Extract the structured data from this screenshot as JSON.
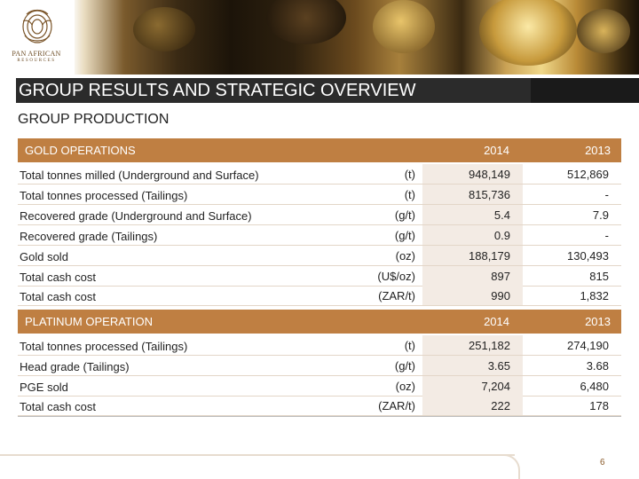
{
  "logo": {
    "name": "PAN AFRICAN",
    "sub": "RESOURCES"
  },
  "header": {
    "title": "GROUP RESULTS AND STRATEGIC OVERVIEW"
  },
  "subtitle": "GROUP PRODUCTION",
  "gold": {
    "section_label": "GOLD OPERATIONS",
    "year1": "2014",
    "year2": "2013",
    "rows": [
      {
        "label": "Total tonnes milled (Underground and Surface)",
        "unit": "(t)",
        "v2014": "948,149",
        "v2013": "512,869"
      },
      {
        "label": "Total tonnes processed (Tailings)",
        "unit": "(t)",
        "v2014": "815,736",
        "v2013": "-"
      },
      {
        "label": "Recovered grade (Underground and Surface)",
        "unit": "(g/t)",
        "v2014": "5.4",
        "v2013": "7.9"
      },
      {
        "label": "Recovered grade (Tailings)",
        "unit": "(g/t)",
        "v2014": "0.9",
        "v2013": "-"
      },
      {
        "label": "Gold sold",
        "unit": "(oz)",
        "v2014": "188,179",
        "v2013": "130,493"
      },
      {
        "label": "Total cash cost",
        "unit": "(U$/oz)",
        "v2014": "897",
        "v2013": "815"
      },
      {
        "label": "Total cash cost",
        "unit": "(ZAR/t)",
        "v2014": "990",
        "v2013": "1,832"
      }
    ]
  },
  "platinum": {
    "section_label": "PLATINUM OPERATION",
    "year1": "2014",
    "year2": "2013",
    "rows": [
      {
        "label": "Total tonnes processed (Tailings)",
        "unit": "(t)",
        "v2014": "251,182",
        "v2013": "274,190"
      },
      {
        "label": "Head grade (Tailings)",
        "unit": "(g/t)",
        "v2014": "3.65",
        "v2013": "3.68"
      },
      {
        "label": "PGE sold",
        "unit": "(oz)",
        "v2014": "7,204",
        "v2013": "6,480"
      },
      {
        "label": "Total cash cost",
        "unit": "(ZAR/t)",
        "v2014": "222",
        "v2013": "178"
      }
    ]
  },
  "footer": {
    "page_number": "6"
  },
  "colors": {
    "section_header": "#bf7f42",
    "value_column": "#f3ebe4",
    "title_bar": "#2b2b2b"
  }
}
